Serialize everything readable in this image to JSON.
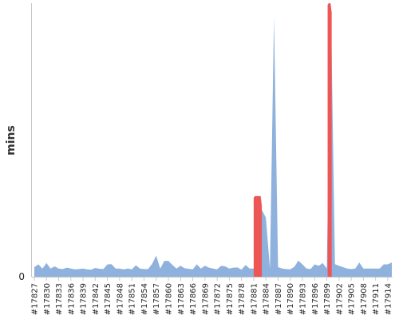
{
  "chart_data": {
    "type": "area",
    "ylabel": "mins",
    "yticks": [
      "0"
    ],
    "ylim": [
      0,
      100
    ],
    "grid": false,
    "legend": "none",
    "series_color": "#8eb2dd",
    "highlight_color": "#ee5555",
    "x_labels": [
      "#17827",
      "#17830",
      "#17833",
      "#17836",
      "#17839",
      "#17842",
      "#17845",
      "#17848",
      "#17851",
      "#17854",
      "#17857",
      "#17860",
      "#17863",
      "#17866",
      "#17869",
      "#17872",
      "#17875",
      "#17878",
      "#17881",
      "#17884",
      "#17887",
      "#17890",
      "#17893",
      "#17896",
      "#17899",
      "#17902",
      "#17905",
      "#17908",
      "#17911",
      "#17914"
    ],
    "x": [
      17827,
      17828,
      17829,
      17830,
      17831,
      17832,
      17833,
      17834,
      17835,
      17836,
      17837,
      17838,
      17839,
      17840,
      17841,
      17842,
      17843,
      17844,
      17845,
      17846,
      17847,
      17848,
      17849,
      17850,
      17851,
      17852,
      17853,
      17854,
      17855,
      17856,
      17857,
      17858,
      17859,
      17860,
      17861,
      17862,
      17863,
      17864,
      17865,
      17866,
      17867,
      17868,
      17869,
      17870,
      17871,
      17872,
      17873,
      17874,
      17875,
      17876,
      17877,
      17878,
      17879,
      17880,
      17881,
      17882,
      17883,
      17884,
      17885,
      17886,
      17887,
      17888,
      17889,
      17890,
      17891,
      17892,
      17893,
      17894,
      17895,
      17896,
      17897,
      17898,
      17899,
      17900,
      17901,
      17902,
      17903,
      17904,
      17905,
      17906,
      17907,
      17908,
      17909,
      17910,
      17911,
      17912,
      17913,
      17914,
      17915
    ],
    "values": [
      3.5,
      4.5,
      3,
      5,
      3,
      3.8,
      3,
      2.8,
      3.3,
      3,
      2.7,
      2.8,
      3,
      2.7,
      2.6,
      3.2,
      2.9,
      2.8,
      4.5,
      4.6,
      3,
      3,
      2.7,
      3,
      2.7,
      4.2,
      3,
      2.8,
      2.8,
      4.7,
      7.7,
      3,
      5.8,
      5.8,
      4.3,
      3,
      4,
      3.1,
      2.9,
      2.7,
      4.5,
      3,
      4,
      3.3,
      3,
      2.7,
      4,
      3.8,
      3,
      3.3,
      3.4,
      2.6,
      4.3,
      3,
      3,
      3,
      24.5,
      21.6,
      3,
      95,
      3.5,
      3,
      2.8,
      2.7,
      3.6,
      5.9,
      4.5,
      3,
      2.8,
      4.5,
      4,
      5,
      3,
      100,
      4.6,
      4,
      3.5,
      3,
      2.8,
      3,
      5.2,
      3,
      3,
      3,
      3,
      3,
      4.5,
      4.5,
      5.2
    ],
    "highlights": [
      {
        "from": 17881,
        "to": 17883,
        "value": 29.5
      },
      {
        "from": 17899.2,
        "to": 17900.2,
        "value": 100
      }
    ]
  }
}
